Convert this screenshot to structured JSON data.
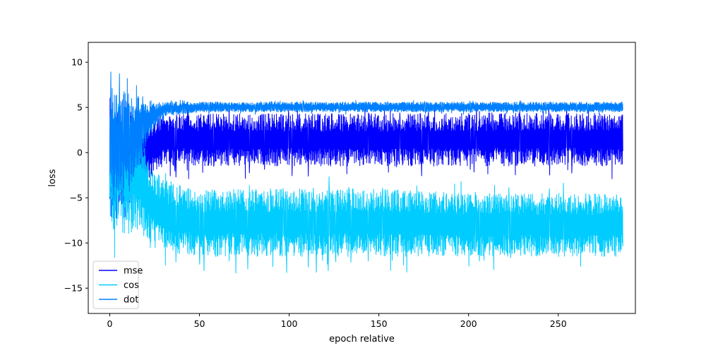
{
  "chart_data": {
    "type": "line",
    "title": "",
    "xlabel": "epoch relative",
    "ylabel": "loss",
    "xlim": [
      -12,
      293
    ],
    "ylim": [
      -17.8,
      12.2
    ],
    "xticks": [
      0,
      50,
      100,
      150,
      200,
      250
    ],
    "yticks": [
      -15,
      -10,
      -5,
      0,
      5,
      10
    ],
    "xtick_labels": [
      "0",
      "50",
      "100",
      "150",
      "200",
      "250"
    ],
    "ytick_labels": [
      "−15",
      "−10",
      "−5",
      "0",
      "5",
      "10"
    ],
    "grid": false,
    "legend_position": "lower-left",
    "x_range": [
      0,
      286
    ],
    "series": [
      {
        "name": "mse",
        "color": "#0000ff",
        "envelope": {
          "x": [
            0,
            5,
            10,
            15,
            20,
            25,
            30,
            50,
            100,
            150,
            200,
            250,
            286
          ],
          "lower": [
            -8,
            -7.5,
            -7,
            -6,
            -4,
            -2,
            -1.5,
            -1.5,
            -1.5,
            -1.5,
            -1.5,
            -1.5,
            -1.5
          ],
          "upper": [
            4.5,
            4.5,
            4.5,
            4.5,
            4.3,
            4.0,
            4.2,
            4.3,
            4.3,
            4.3,
            4.4,
            4.4,
            4.4
          ]
        }
      },
      {
        "name": "cos",
        "color": "#00ccff",
        "envelope": {
          "x": [
            0,
            5,
            10,
            15,
            20,
            25,
            30,
            50,
            100,
            150,
            200,
            250,
            286
          ],
          "lower": [
            -8,
            -9,
            -9,
            -8.5,
            -9.5,
            -10.5,
            -11,
            -11.5,
            -11.5,
            -11.5,
            -11.5,
            -11.5,
            -11.5
          ],
          "upper": [
            5.5,
            5.5,
            4.5,
            3,
            0,
            -2,
            -3,
            -4,
            -4,
            -4,
            -4.5,
            -4.5,
            -4.5
          ]
        }
      },
      {
        "name": "dot",
        "color": "#0080ff",
        "envelope": {
          "x": [
            0,
            5,
            10,
            15,
            20,
            25,
            30,
            50,
            100,
            150,
            200,
            250,
            286
          ],
          "lower": [
            -6,
            -5,
            -4,
            -2,
            0.5,
            2.5,
            4,
            4.5,
            4.5,
            4.5,
            4.5,
            4.5,
            4.5
          ],
          "upper": [
            7.5,
            7,
            6.8,
            6.5,
            6,
            5.8,
            5.6,
            5.6,
            5.6,
            5.6,
            5.6,
            5.6,
            5.6
          ]
        }
      }
    ]
  }
}
